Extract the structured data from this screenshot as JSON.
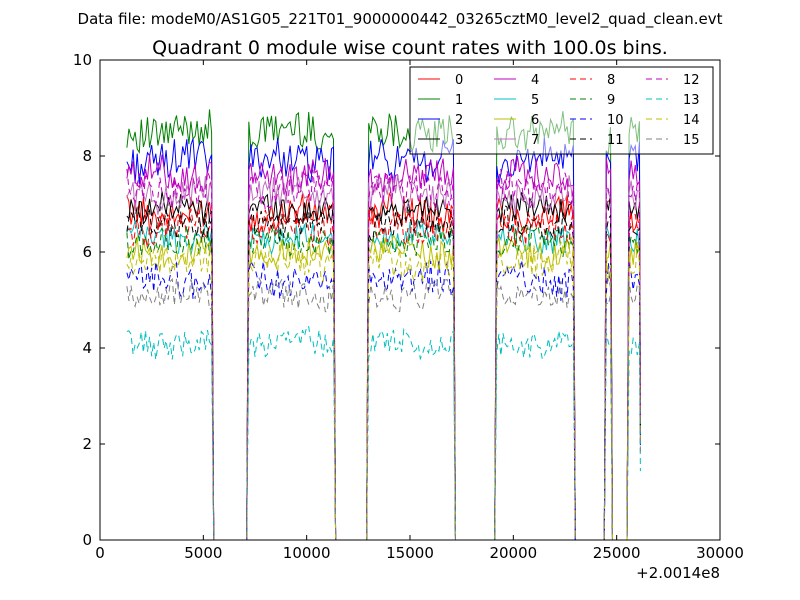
{
  "figure": {
    "suptitle": "Data file: modeM0/AS1G05_221T01_9000000442_03265cztM0_level2_quad_clean.evt"
  },
  "chart_data": {
    "type": "line",
    "title": "Quadrant 0 module wise count rates with 100.0s bins.",
    "xlabel": "",
    "ylabel": "",
    "xlim": [
      0,
      30000
    ],
    "ylim": [
      0,
      10
    ],
    "x_ticks": [
      0,
      5000,
      10000,
      15000,
      20000,
      25000,
      30000
    ],
    "x_tick_labels": [
      "0",
      "5000",
      "10000",
      "15000",
      "20000",
      "25000",
      "30000"
    ],
    "y_ticks": [
      0,
      2,
      4,
      6,
      8,
      10
    ],
    "y_tick_labels": [
      "0",
      "2",
      "4",
      "6",
      "8",
      "10"
    ],
    "x_offset_label": "+2.0014e8",
    "grid": false,
    "legend_position": "top-right",
    "legend_columns": 4,
    "segments": [
      {
        "x_start": 1300,
        "x_end": 5400
      },
      {
        "x_start": 7200,
        "x_end": 11300
      },
      {
        "x_start": 13000,
        "x_end": 17100
      },
      {
        "x_start": 19200,
        "x_end": 22900
      },
      {
        "x_start": 24500,
        "x_end": 24700
      },
      {
        "x_start": 25600,
        "x_end": 26100
      }
    ],
    "gap_level": 0,
    "series": [
      {
        "name": "0",
        "color": "#ff0000",
        "dash": "solid",
        "level": 6.8,
        "amp": 0.35
      },
      {
        "name": "1",
        "color": "#008000",
        "dash": "solid",
        "level": 8.5,
        "amp": 0.4
      },
      {
        "name": "2",
        "color": "#0000ff",
        "dash": "solid",
        "level": 7.9,
        "amp": 0.4
      },
      {
        "name": "3",
        "color": "#000000",
        "dash": "solid",
        "level": 6.9,
        "amp": 0.3
      },
      {
        "name": "4",
        "color": "#bf00bf",
        "dash": "solid",
        "level": 7.6,
        "amp": 0.35
      },
      {
        "name": "5",
        "color": "#00bfbf",
        "dash": "solid",
        "level": 6.3,
        "amp": 0.3
      },
      {
        "name": "6",
        "color": "#bfbf00",
        "dash": "solid",
        "level": 6.0,
        "amp": 0.3
      },
      {
        "name": "7",
        "color": "#bf6fbf",
        "dash": "solid",
        "level": 7.2,
        "amp": 0.35
      },
      {
        "name": "8",
        "color": "#ff0000",
        "dash": "dashed",
        "level": 6.5,
        "amp": 0.35
      },
      {
        "name": "9",
        "color": "#008000",
        "dash": "dashed",
        "level": 6.2,
        "amp": 0.3
      },
      {
        "name": "10",
        "color": "#0000ff",
        "dash": "dashed",
        "level": 5.4,
        "amp": 0.35
      },
      {
        "name": "11",
        "color": "#000000",
        "dash": "dashed",
        "level": 6.6,
        "amp": 0.3
      },
      {
        "name": "12",
        "color": "#bf00bf",
        "dash": "dashed",
        "level": 7.3,
        "amp": 0.35
      },
      {
        "name": "13",
        "color": "#00bfbf",
        "dash": "dashed",
        "level": 4.1,
        "amp": 0.3
      },
      {
        "name": "14",
        "color": "#bfbf00",
        "dash": "dashed",
        "level": 5.8,
        "amp": 0.35
      },
      {
        "name": "15",
        "color": "#808080",
        "dash": "dashed",
        "level": 5.1,
        "amp": 0.3
      }
    ]
  }
}
